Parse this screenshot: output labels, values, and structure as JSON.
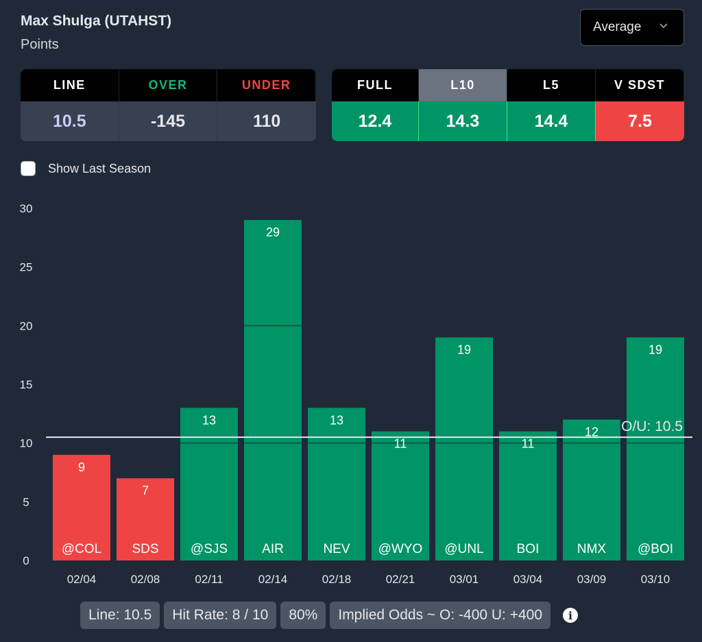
{
  "header": {
    "player_name": "Max Shulga (UTAHST)",
    "stat": "Points"
  },
  "dropdown": {
    "selected": "Average"
  },
  "odds_table": {
    "headers": [
      "LINE",
      "OVER",
      "UNDER"
    ],
    "values": [
      "10.5",
      "-145",
      "110"
    ]
  },
  "avg_table": {
    "headers": [
      "FULL",
      "L10",
      "L5",
      "V SDST"
    ],
    "values": [
      "12.4",
      "14.3",
      "14.4",
      "7.5"
    ],
    "active": "L10",
    "colors": [
      "#019467",
      "#019467",
      "#019467",
      "#ef4444"
    ]
  },
  "checkbox": {
    "label": "Show Last Season",
    "checked": false
  },
  "chart_data": {
    "type": "bar",
    "title": "",
    "xlabel": "",
    "ylabel": "",
    "ylim": [
      0,
      30
    ],
    "yticks": [
      0,
      5,
      10,
      15,
      20,
      25,
      30
    ],
    "categories": [
      "02/04",
      "02/08",
      "02/11",
      "02/14",
      "02/18",
      "02/21",
      "03/01",
      "03/04",
      "03/09",
      "03/10"
    ],
    "opponents": [
      "@COL",
      "SDS",
      "@SJS",
      "AIR",
      "NEV",
      "@WYO",
      "@UNL",
      "BOI",
      "NMX",
      "@BOI"
    ],
    "values": [
      9,
      7,
      13,
      29,
      13,
      11,
      19,
      11,
      12,
      19
    ],
    "line": 10.5,
    "line_label": "O/U: 10.5",
    "colors": {
      "over": "#019467",
      "under": "#ef4444"
    },
    "grid": false
  },
  "summary": {
    "line": "Line: 10.5",
    "hit_rate": "Hit Rate: 8 / 10",
    "percent": "80%",
    "implied_odds": "Implied Odds ~ O: -400 U: +400"
  }
}
